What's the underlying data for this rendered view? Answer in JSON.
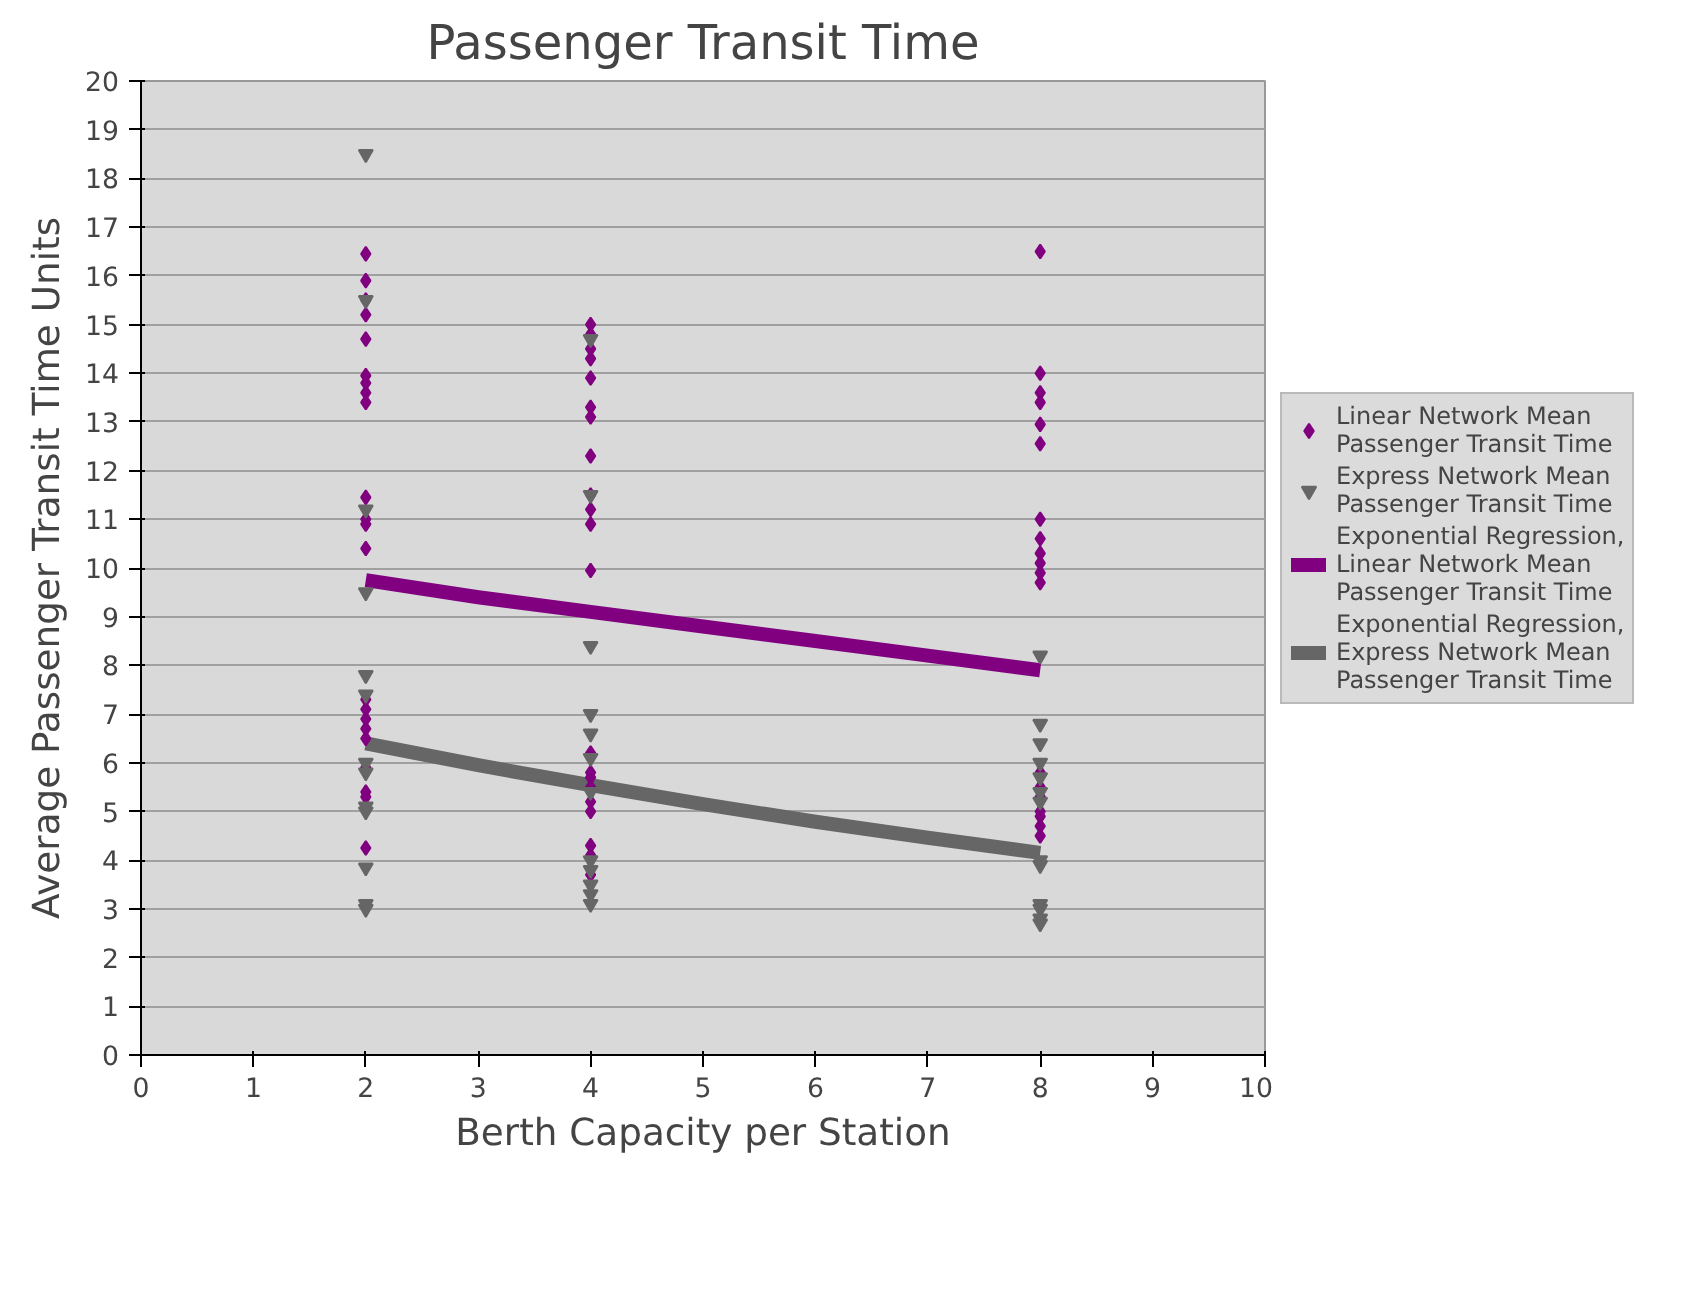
{
  "chart_data": {
    "type": "scatter",
    "title": "Passenger Transit Time",
    "xlabel": "Berth Capacity per Station",
    "ylabel": "Average Passenger Transit Time Units",
    "xlim": [
      0,
      10
    ],
    "xticks": [
      0,
      1,
      2,
      3,
      4,
      5,
      6,
      7,
      8,
      9,
      10
    ],
    "ylim": [
      0,
      20
    ],
    "yticks": [
      0,
      1,
      2,
      3,
      4,
      5,
      6,
      7,
      8,
      9,
      10,
      11,
      12,
      13,
      14,
      15,
      16,
      17,
      18,
      19,
      20
    ],
    "grid": "y",
    "legend": "right",
    "series": [
      {
        "name": "Linear Network Mean Passenger Transit Time",
        "marker": "diamond",
        "color": "#800080",
        "x": [
          2,
          2,
          2,
          2,
          2,
          2,
          2,
          2,
          2,
          2,
          2,
          2,
          2,
          2,
          2,
          2,
          2,
          2,
          2,
          2,
          2,
          2,
          4,
          4,
          4,
          4,
          4,
          4,
          4,
          4,
          4,
          4,
          4,
          4,
          4,
          4,
          4,
          4,
          4,
          4,
          4,
          4,
          4,
          8,
          8,
          8,
          8,
          8,
          8,
          8,
          8,
          8,
          8,
          8,
          8,
          8,
          8,
          8,
          8,
          8,
          8,
          8
        ],
        "values": [
          16.45,
          15.9,
          15.5,
          15.2,
          14.7,
          13.95,
          13.8,
          13.6,
          13.4,
          11.45,
          11.0,
          10.9,
          10.4,
          7.3,
          7.1,
          6.9,
          6.7,
          6.5,
          5.9,
          5.4,
          5.3,
          4.25,
          15.0,
          14.8,
          14.5,
          14.3,
          13.9,
          13.3,
          13.1,
          12.3,
          11.5,
          11.2,
          10.9,
          9.95,
          6.2,
          5.8,
          5.7,
          5.5,
          5.2,
          5.0,
          4.3,
          4.1,
          3.7,
          16.5,
          14.0,
          13.6,
          13.4,
          12.95,
          12.55,
          11.0,
          10.6,
          10.3,
          10.1,
          9.9,
          9.7,
          5.8,
          5.5,
          5.3,
          5.0,
          4.9,
          4.7,
          4.5
        ]
      },
      {
        "name": "Express Network Mean Passenger Transit Time",
        "marker": "triangle",
        "color": "#666666",
        "x": [
          2,
          2,
          2,
          2,
          2,
          2,
          2,
          2,
          2,
          2,
          2,
          2,
          2,
          4,
          4,
          4,
          4,
          4,
          4,
          4,
          4,
          4,
          4,
          4,
          4,
          8,
          8,
          8,
          8,
          8,
          8,
          8,
          8,
          8,
          8,
          8,
          8,
          8
        ],
        "values": [
          18.5,
          15.5,
          11.2,
          9.5,
          7.8,
          7.4,
          6.0,
          5.8,
          5.1,
          5.0,
          3.85,
          3.1,
          3.0,
          14.7,
          11.5,
          8.4,
          7.0,
          6.6,
          6.1,
          5.4,
          4.0,
          3.8,
          3.5,
          3.3,
          3.1,
          8.2,
          6.8,
          6.4,
          6.0,
          5.7,
          5.4,
          5.2,
          4.0,
          3.9,
          3.1,
          3.0,
          2.8,
          2.7
        ]
      },
      {
        "name": "Exponential Regression, Linear Network Mean Passenger Transit Time",
        "type": "line",
        "color": "#800080",
        "x": [
          2,
          3,
          4,
          5,
          6,
          7,
          8
        ],
        "values": [
          9.75,
          9.4,
          9.1,
          8.8,
          8.5,
          8.2,
          7.9
        ]
      },
      {
        "name": "Exponential Regression, Express Network Mean Passenger Transit Time",
        "type": "line",
        "color": "#666666",
        "x": [
          2,
          3,
          4,
          5,
          6,
          7,
          8
        ],
        "values": [
          6.4,
          5.95,
          5.54,
          5.15,
          4.79,
          4.46,
          4.15
        ]
      }
    ]
  }
}
